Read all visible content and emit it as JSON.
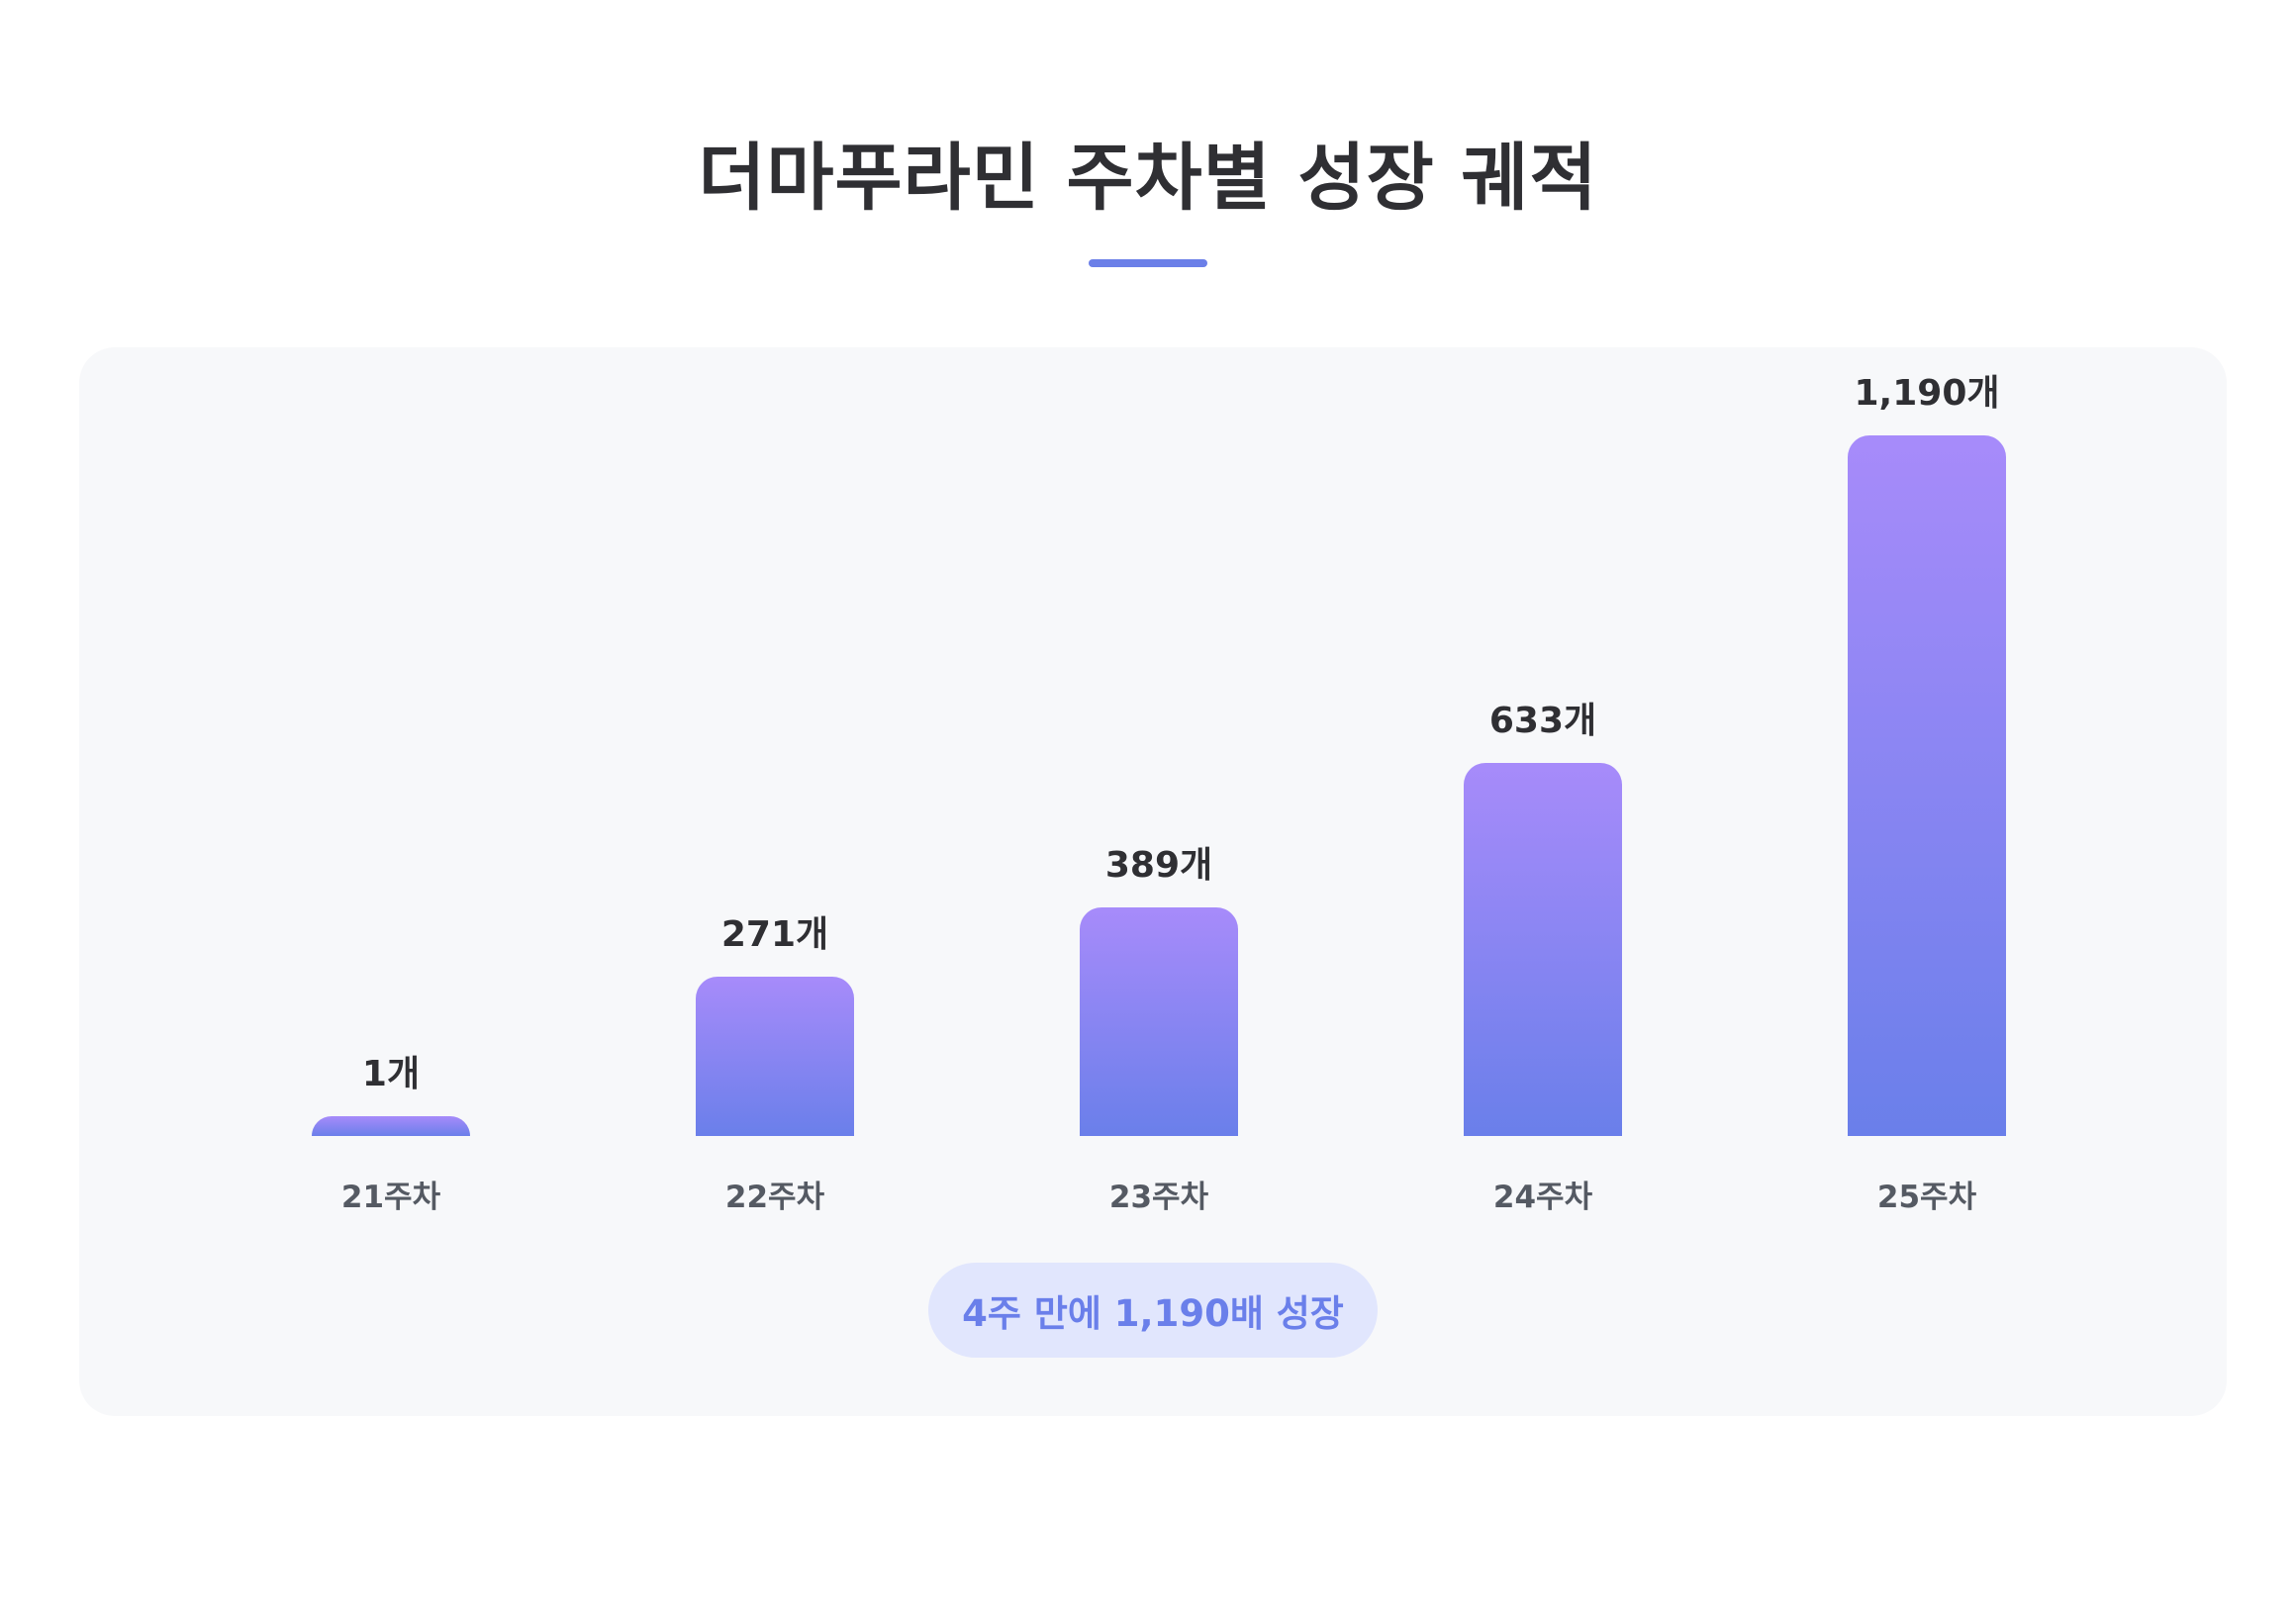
{
  "header": {
    "title": "더마푸라민 주차별 성장 궤적"
  },
  "summary": {
    "text": "4주 만에 1,190배 성장"
  },
  "colors": {
    "bar_top": "#a78bfa",
    "bar_bottom": "#6a7fea",
    "accent": "#6b7fe8",
    "badge_bg": "#e1e6fd"
  },
  "chart_data": {
    "type": "bar",
    "title": "더마푸라민 주차별 성장 궤적",
    "xlabel": "",
    "ylabel": "",
    "grid": false,
    "categories": [
      "21주차",
      "22주차",
      "23주차",
      "24주차",
      "25주차"
    ],
    "values": [
      1,
      271,
      389,
      633,
      1190
    ],
    "value_labels": [
      "1개",
      "271개",
      "389개",
      "633개",
      "1,190개"
    ]
  }
}
